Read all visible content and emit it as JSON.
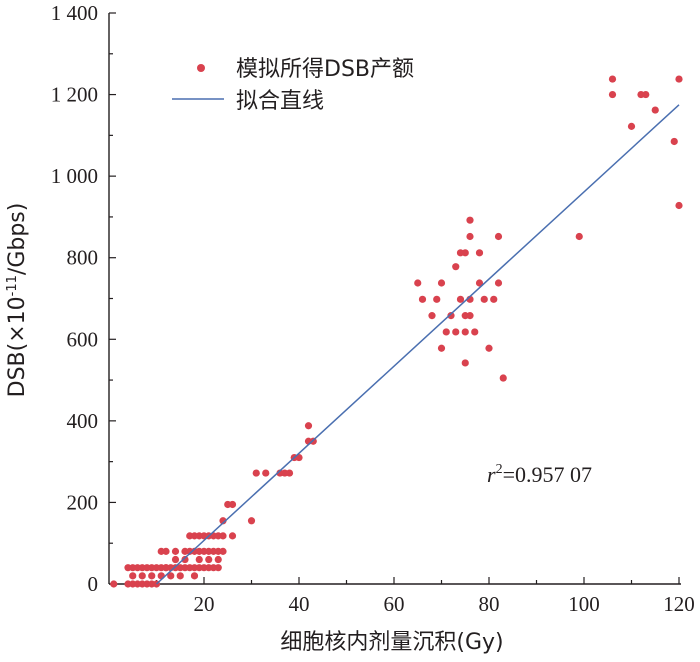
{
  "chart_data": {
    "type": "scatter",
    "xlabel": "细胞核内剂量沉积(Gy)",
    "ylabel_main": "DSB(×10",
    "ylabel_exp": "-11",
    "ylabel_tail": "/Gbps)",
    "xlim": [
      0,
      120
    ],
    "ylim": [
      0,
      1400
    ],
    "xticks": [
      20,
      40,
      60,
      80,
      100,
      120
    ],
    "yticks": [
      0,
      200,
      400,
      600,
      800,
      1000,
      1200,
      1400
    ],
    "ytick_labels": [
      "0",
      "200",
      "400",
      "600",
      "800",
      "1 000",
      "1 200",
      "1 400"
    ],
    "legend_position": "top-left",
    "annotation": {
      "r_symbol": "r",
      "r_sup": "2",
      "text": "=0.957 07"
    },
    "colors": {
      "points": "#d9424e",
      "fit_line": "#4a6fb0",
      "axes": "#231f20"
    },
    "series": [
      {
        "name": "模拟所得DSB产额",
        "kind": "points",
        "points": [
          [
            1,
            0
          ],
          [
            4,
            0
          ],
          [
            5,
            0
          ],
          [
            6,
            0
          ],
          [
            7,
            0
          ],
          [
            8,
            0
          ],
          [
            9,
            0
          ],
          [
            10,
            0
          ],
          [
            4,
            40
          ],
          [
            5,
            40
          ],
          [
            6,
            40
          ],
          [
            7,
            40
          ],
          [
            8,
            40
          ],
          [
            9,
            40
          ],
          [
            10,
            40
          ],
          [
            11,
            40
          ],
          [
            12,
            40
          ],
          [
            13,
            40
          ],
          [
            14,
            40
          ],
          [
            15,
            40
          ],
          [
            16,
            40
          ],
          [
            17,
            40
          ],
          [
            18,
            40
          ],
          [
            19,
            40
          ],
          [
            20,
            40
          ],
          [
            21,
            40
          ],
          [
            22,
            40
          ],
          [
            23,
            40
          ],
          [
            5,
            20
          ],
          [
            7,
            20
          ],
          [
            9,
            20
          ],
          [
            11,
            20
          ],
          [
            13,
            20
          ],
          [
            15,
            20
          ],
          [
            18,
            20
          ],
          [
            11,
            80
          ],
          [
            12,
            80
          ],
          [
            14,
            80
          ],
          [
            16,
            80
          ],
          [
            17,
            80
          ],
          [
            18,
            80
          ],
          [
            19,
            80
          ],
          [
            20,
            80
          ],
          [
            21,
            80
          ],
          [
            22,
            80
          ],
          [
            23,
            80
          ],
          [
            24,
            80
          ],
          [
            17,
            118
          ],
          [
            18,
            118
          ],
          [
            19,
            118
          ],
          [
            20,
            118
          ],
          [
            21,
            118
          ],
          [
            22,
            118
          ],
          [
            23,
            118
          ],
          [
            24,
            118
          ],
          [
            12,
            40
          ],
          [
            14,
            60
          ],
          [
            16,
            60
          ],
          [
            19,
            60
          ],
          [
            21,
            60
          ],
          [
            23,
            60
          ],
          [
            26,
            118
          ],
          [
            24,
            155
          ],
          [
            25,
            195
          ],
          [
            26,
            195
          ],
          [
            30,
            155
          ],
          [
            31,
            272
          ],
          [
            33,
            272
          ],
          [
            36,
            272
          ],
          [
            37,
            272
          ],
          [
            38,
            272
          ],
          [
            39,
            310
          ],
          [
            40,
            310
          ],
          [
            42,
            350
          ],
          [
            43,
            350
          ],
          [
            42,
            388
          ],
          [
            65,
            738
          ],
          [
            66,
            698
          ],
          [
            68,
            658
          ],
          [
            69,
            698
          ],
          [
            70,
            738
          ],
          [
            71,
            618
          ],
          [
            72,
            658
          ],
          [
            73,
            778
          ],
          [
            73,
            618
          ],
          [
            74,
            698
          ],
          [
            75,
            618
          ],
          [
            75,
            658
          ],
          [
            76,
            658
          ],
          [
            76,
            698
          ],
          [
            77,
            618
          ],
          [
            78,
            738
          ],
          [
            78,
            812
          ],
          [
            79,
            698
          ],
          [
            80,
            578
          ],
          [
            81,
            698
          ],
          [
            82,
            738
          ],
          [
            82,
            852
          ],
          [
            83,
            505
          ],
          [
            76,
            852
          ],
          [
            76,
            892
          ],
          [
            75,
            812
          ],
          [
            74,
            812
          ],
          [
            70,
            578
          ],
          [
            75,
            542
          ],
          [
            99,
            852
          ],
          [
            106,
            1238
          ],
          [
            106,
            1200
          ],
          [
            110,
            1122
          ],
          [
            112,
            1200
          ],
          [
            113,
            1200
          ],
          [
            115,
            1162
          ],
          [
            119,
            1085
          ],
          [
            120,
            1238
          ],
          [
            120,
            928
          ]
        ]
      },
      {
        "name": "拟合直线",
        "kind": "line",
        "points": [
          [
            10,
            0
          ],
          [
            120,
            1175
          ]
        ]
      }
    ]
  }
}
